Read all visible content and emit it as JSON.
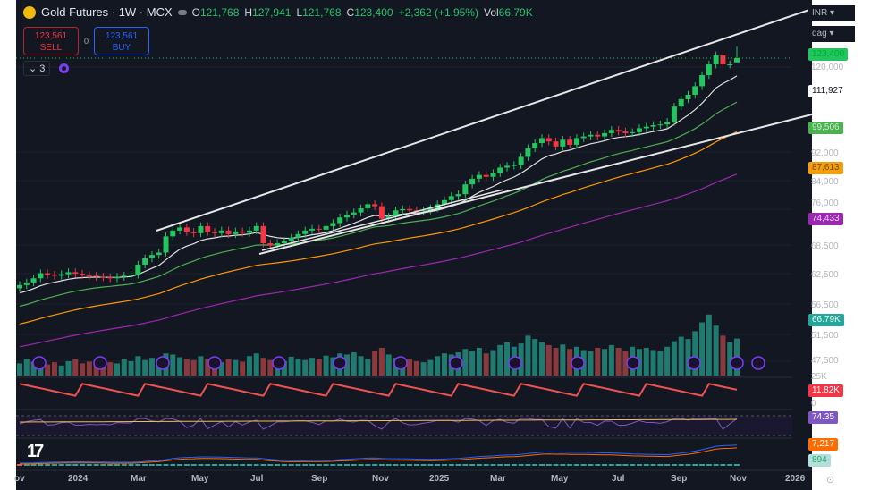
{
  "header": {
    "title": "Gold Futures · 1W · MCX",
    "o_label": "O",
    "o": "121,768",
    "h_label": "H",
    "h": "127,941",
    "l_label": "L",
    "l": "121,768",
    "c_label": "C",
    "c": "123,400",
    "change": "+2,362 (+1.95%)",
    "vol_label": "Vol",
    "vol": "66.79K"
  },
  "trade": {
    "sell_price": "123,561",
    "sell_label": "SELL",
    "spread": "0",
    "buy_price": "123,561",
    "buy_label": "BUY"
  },
  "indicators": {
    "collapsed_count": "3"
  },
  "selectors": {
    "currency": "INR",
    "unit": "dag"
  },
  "colors": {
    "up": "#26a69a",
    "down": "#ef5350",
    "candle_up": "#22c55e",
    "candle_down": "#f23645",
    "ma1": "#e0e0e0",
    "ma2": "#4caf50",
    "ma3": "#ff9800",
    "ma4": "#9c27b0"
  },
  "price_axis": [
    "120,000",
    "111,927",
    "92,000",
    "84,000",
    "76,000",
    "68,500",
    "62,500",
    "56,500",
    "51,500",
    "47,500"
  ],
  "price_tags": {
    "last": "123,400",
    "ma1": "111,927",
    "ma2": "99,506",
    "ma3": "87,613",
    "ma4": "74,433",
    "volume": "66.79K"
  },
  "pane_labels": {
    "p1_top": "25K",
    "p1_value": "11.82K",
    "p1_zero": "0",
    "p2_value": "74.35",
    "p3_value1": "7,217",
    "p3_value2": "894"
  },
  "time_axis": [
    "ov",
    "2024",
    "Mar",
    "May",
    "Jul",
    "Sep",
    "Nov",
    "2025",
    "Mar",
    "May",
    "Jul",
    "Sep",
    "Nov",
    "2026"
  ],
  "chart_data": {
    "type": "candlestick",
    "symbol": "Gold Futures · 1W · MCX",
    "y_scale": "log",
    "ylim": [
      47500,
      130000
    ],
    "x_range": [
      "Nov 2023",
      "Jan 2026"
    ],
    "weekly_close": [
      60500,
      61000,
      61800,
      62800,
      62500,
      62300,
      62600,
      63000,
      62700,
      62400,
      62300,
      62100,
      62000,
      61800,
      62100,
      62300,
      62500,
      64500,
      65800,
      66500,
      67000,
      70500,
      71800,
      72500,
      71500,
      71200,
      72800,
      71500,
      71200,
      71800,
      71000,
      71600,
      71300,
      71800,
      72800,
      69000,
      68500,
      69000,
      69500,
      70200,
      71000,
      71800,
      72200,
      72000,
      72800,
      73500,
      74800,
      75500,
      76000,
      77000,
      78000,
      77500,
      74500,
      75000,
      76500,
      76800,
      76500,
      76300,
      76500,
      77000,
      78000,
      79000,
      80000,
      80500,
      83000,
      84500,
      85500,
      85000,
      86000,
      87500,
      88000,
      88200,
      90500,
      93000,
      94500,
      96000,
      95000,
      93500,
      95500,
      94000,
      96000,
      96500,
      97000,
      96500,
      97500,
      98500,
      98000,
      97500,
      97800,
      99000,
      99500,
      100000,
      100200,
      101000,
      106000,
      108500,
      110000,
      113000,
      117000,
      121000,
      124500,
      121000,
      121000,
      123400
    ],
    "last_candle": {
      "open": 121768,
      "high": 127941,
      "low": 121768,
      "close": 123400
    },
    "volume_k": [
      22,
      30,
      25,
      28,
      20,
      24,
      18,
      26,
      30,
      22,
      25,
      20,
      28,
      24,
      22,
      30,
      26,
      35,
      28,
      32,
      30,
      40,
      38,
      33,
      30,
      28,
      35,
      30,
      26,
      24,
      30,
      28,
      25,
      35,
      40,
      32,
      28,
      30,
      26,
      34,
      30,
      28,
      32,
      30,
      36,
      33,
      40,
      38,
      42,
      35,
      30,
      45,
      50,
      38,
      32,
      28,
      30,
      26,
      24,
      28,
      35,
      40,
      38,
      42,
      48,
      45,
      50,
      40,
      46,
      55,
      60,
      52,
      58,
      72,
      66,
      60,
      55,
      50,
      56,
      48,
      52,
      46,
      44,
      50,
      48,
      55,
      50,
      45,
      52,
      48,
      50,
      46,
      44,
      52,
      62,
      70,
      66,
      80,
      96,
      110,
      90,
      72,
      60,
      66.79
    ],
    "moving_averages": [
      {
        "color": "#e0e0e0",
        "last": 111927
      },
      {
        "color": "#4caf50",
        "last": 99506
      },
      {
        "color": "#ff9800",
        "last": 87613
      },
      {
        "color": "#9c27b0",
        "last": 74433
      }
    ]
  }
}
